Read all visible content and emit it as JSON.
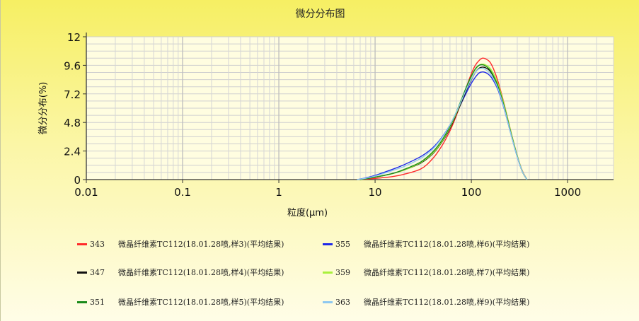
{
  "chart_data": {
    "type": "line",
    "title": "微分分布图",
    "xlabel": "粒度(μm)",
    "ylabel": "微分分布(%)",
    "xscale": "log",
    "xlim": [
      0.01,
      3000
    ],
    "ylim": [
      0,
      12
    ],
    "xticks": [
      "0.01",
      "0.1",
      "1",
      "10",
      "100",
      "1000"
    ],
    "yticks": [
      "0",
      "2.4",
      "4.8",
      "7.2",
      "9.6",
      "12"
    ],
    "grid": true,
    "plot_background": "#fffde0",
    "series": [
      {
        "name": "343",
        "color": "#ff2a2a",
        "legend_label": "微晶纤维素TC112(18.01.28喷,样3)(平均结果)",
        "points": [
          [
            7,
            0
          ],
          [
            10,
            0.1
          ],
          [
            15,
            0.25
          ],
          [
            20,
            0.45
          ],
          [
            30,
            0.9
          ],
          [
            40,
            1.8
          ],
          [
            50,
            2.9
          ],
          [
            60,
            4.1
          ],
          [
            70,
            5.4
          ],
          [
            80,
            6.7
          ],
          [
            90,
            7.9
          ],
          [
            100,
            8.9
          ],
          [
            110,
            9.6
          ],
          [
            120,
            10.0
          ],
          [
            130,
            10.2
          ],
          [
            140,
            10.15
          ],
          [
            155,
            9.9
          ],
          [
            170,
            9.3
          ],
          [
            190,
            8.2
          ],
          [
            220,
            6.3
          ],
          [
            260,
            3.9
          ],
          [
            300,
            2.0
          ],
          [
            340,
            0.7
          ],
          [
            380,
            0
          ]
        ]
      },
      {
        "name": "355",
        "color": "#1e28e8",
        "legend_label": "微晶纤维素TC112(18.01.28喷,样6)(平均结果)",
        "points": [
          [
            6.5,
            0
          ],
          [
            8,
            0.15
          ],
          [
            10,
            0.35
          ],
          [
            15,
            0.85
          ],
          [
            20,
            1.25
          ],
          [
            30,
            1.95
          ],
          [
            40,
            2.7
          ],
          [
            50,
            3.6
          ],
          [
            60,
            4.6
          ],
          [
            70,
            5.6
          ],
          [
            80,
            6.55
          ],
          [
            90,
            7.4
          ],
          [
            100,
            8.1
          ],
          [
            110,
            8.6
          ],
          [
            120,
            8.95
          ],
          [
            130,
            9.05
          ],
          [
            140,
            9.0
          ],
          [
            155,
            8.75
          ],
          [
            170,
            8.3
          ],
          [
            190,
            7.5
          ],
          [
            220,
            5.9
          ],
          [
            260,
            3.7
          ],
          [
            300,
            1.9
          ],
          [
            340,
            0.65
          ],
          [
            380,
            0
          ]
        ]
      },
      {
        "name": "347",
        "color": "#111111",
        "legend_label": "微晶纤维素TC112(18.01.28喷,样4)(平均结果)",
        "points": [
          [
            7,
            0
          ],
          [
            10,
            0.2
          ],
          [
            15,
            0.5
          ],
          [
            20,
            0.8
          ],
          [
            30,
            1.4
          ],
          [
            40,
            2.2
          ],
          [
            50,
            3.2
          ],
          [
            60,
            4.3
          ],
          [
            70,
            5.5
          ],
          [
            80,
            6.6
          ],
          [
            90,
            7.6
          ],
          [
            100,
            8.4
          ],
          [
            110,
            9.0
          ],
          [
            120,
            9.35
          ],
          [
            130,
            9.45
          ],
          [
            140,
            9.4
          ],
          [
            155,
            9.15
          ],
          [
            170,
            8.65
          ],
          [
            190,
            7.8
          ],
          [
            220,
            6.1
          ],
          [
            260,
            3.8
          ],
          [
            300,
            1.95
          ],
          [
            340,
            0.65
          ],
          [
            380,
            0
          ]
        ]
      },
      {
        "name": "359",
        "color": "#a8f03c",
        "legend_label": "微晶纤维素TC112(18.01.28喷,样7)(平均结果)",
        "points": [
          [
            7,
            0
          ],
          [
            10,
            0.2
          ],
          [
            15,
            0.5
          ],
          [
            20,
            0.8
          ],
          [
            30,
            1.45
          ],
          [
            40,
            2.25
          ],
          [
            50,
            3.25
          ],
          [
            60,
            4.4
          ],
          [
            70,
            5.6
          ],
          [
            80,
            6.75
          ],
          [
            90,
            7.8
          ],
          [
            100,
            8.65
          ],
          [
            110,
            9.25
          ],
          [
            120,
            9.6
          ],
          [
            130,
            9.7
          ],
          [
            140,
            9.65
          ],
          [
            155,
            9.4
          ],
          [
            170,
            8.9
          ],
          [
            190,
            8.0
          ],
          [
            220,
            6.25
          ],
          [
            260,
            3.9
          ],
          [
            300,
            2.0
          ],
          [
            340,
            0.68
          ],
          [
            380,
            0
          ]
        ]
      },
      {
        "name": "351",
        "color": "#1a8a1a",
        "legend_label": "微晶纤维素TC112(18.01.28喷,样5)(平均结果)",
        "points": [
          [
            7,
            0
          ],
          [
            10,
            0.2
          ],
          [
            15,
            0.5
          ],
          [
            20,
            0.85
          ],
          [
            30,
            1.5
          ],
          [
            40,
            2.35
          ],
          [
            50,
            3.35
          ],
          [
            60,
            4.5
          ],
          [
            70,
            5.7
          ],
          [
            80,
            6.85
          ],
          [
            90,
            7.9
          ],
          [
            100,
            8.7
          ],
          [
            110,
            9.3
          ],
          [
            120,
            9.6
          ],
          [
            130,
            9.65
          ],
          [
            140,
            9.55
          ],
          [
            155,
            9.25
          ],
          [
            170,
            8.7
          ],
          [
            190,
            7.8
          ],
          [
            220,
            6.1
          ],
          [
            260,
            3.8
          ],
          [
            300,
            1.95
          ],
          [
            340,
            0.65
          ],
          [
            380,
            0
          ]
        ]
      },
      {
        "name": "363",
        "color": "#8ec8f0",
        "legend_label": "微晶纤维素TC112(18.01.28喷,样9)(平均结果)",
        "points": [
          [
            6.5,
            0
          ],
          [
            8,
            0.12
          ],
          [
            10,
            0.3
          ],
          [
            15,
            0.75
          ],
          [
            20,
            1.1
          ],
          [
            30,
            1.8
          ],
          [
            40,
            2.6
          ],
          [
            50,
            3.55
          ],
          [
            60,
            4.6
          ],
          [
            70,
            5.7
          ],
          [
            80,
            6.75
          ],
          [
            90,
            7.7
          ],
          [
            100,
            8.45
          ],
          [
            110,
            9.0
          ],
          [
            120,
            9.3
          ],
          [
            130,
            9.35
          ],
          [
            140,
            9.25
          ],
          [
            155,
            8.95
          ],
          [
            170,
            8.45
          ],
          [
            190,
            7.6
          ],
          [
            220,
            5.95
          ],
          [
            260,
            3.7
          ],
          [
            300,
            1.9
          ],
          [
            340,
            0.65
          ],
          [
            380,
            0
          ]
        ]
      }
    ]
  },
  "legend": [
    {
      "id": "343",
      "color": "#ff2a2a",
      "label": "微晶纤维素TC112(18.01.28喷,样3)(平均结果)"
    },
    {
      "id": "355",
      "color": "#1e28e8",
      "label": "微晶纤维素TC112(18.01.28喷,样6)(平均结果)"
    },
    {
      "id": "347",
      "color": "#111111",
      "label": "微晶纤维素TC112(18.01.28喷,样4)(平均结果)"
    },
    {
      "id": "359",
      "color": "#a8f03c",
      "label": "微晶纤维素TC112(18.01.28喷,样7)(平均结果)"
    },
    {
      "id": "351",
      "color": "#1a8a1a",
      "label": "微晶纤维素TC112(18.01.28喷,样5)(平均结果)"
    },
    {
      "id": "363",
      "color": "#8ec8f0",
      "label": "微晶纤维素TC112(18.01.28喷,样9)(平均结果)"
    }
  ]
}
